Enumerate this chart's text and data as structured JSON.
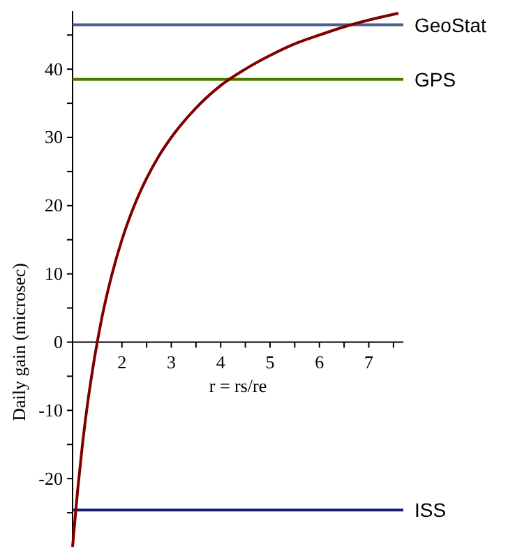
{
  "chart_data": {
    "type": "line",
    "xlabel": "r = rs/re",
    "ylabel": "Daily gain (microsec)",
    "x": [
      1.0,
      1.1,
      1.2,
      1.3,
      1.4,
      1.5,
      1.6,
      1.8,
      2.0,
      2.25,
      2.5,
      2.75,
      3.0,
      3.5,
      4.0,
      4.5,
      5.0,
      5.5,
      6.0,
      6.5,
      7.0,
      7.6
    ],
    "series": [
      {
        "color": "#800000",
        "values": [
          -30,
          -21.9,
          -15,
          -9.2,
          -4.3,
          0,
          3.8,
          10,
          15,
          20,
          24,
          27.3,
          30,
          34.3,
          37.6,
          40,
          42,
          43.7,
          45,
          46.2,
          47.2,
          48.2
        ]
      }
    ],
    "xlim": [
      1,
      7.7
    ],
    "ylim": [
      -30,
      48.5
    ],
    "xticks": [
      {
        "value": 1,
        "label": null
      },
      {
        "value": 1.5,
        "label": null
      },
      2,
      {
        "value": 2.5,
        "label": null
      },
      3,
      {
        "value": 3.5,
        "label": null
      },
      4,
      {
        "value": 4.5,
        "label": null
      },
      5,
      {
        "value": 5.5,
        "label": null
      },
      6,
      {
        "value": 6.5,
        "label": null
      },
      7,
      {
        "value": 7.5,
        "label": null
      }
    ],
    "yticks": [
      {
        "value": -25,
        "label": null
      },
      -20,
      {
        "value": -15,
        "label": null
      },
      -10,
      {
        "value": -5,
        "label": null
      },
      0,
      {
        "value": 5,
        "label": null
      },
      10,
      {
        "value": 15,
        "label": null
      },
      20,
      {
        "value": 25,
        "label": null
      },
      30,
      {
        "value": 35,
        "label": null
      },
      40,
      {
        "value": 45,
        "label": null
      }
    ],
    "ref_lines": [
      {
        "axis": "y",
        "value": 46.5,
        "label": "GeoStat",
        "color": "#4a5e8e"
      },
      {
        "axis": "y",
        "value": 38.5,
        "label": "GPS",
        "color": "#4b7c00"
      },
      {
        "axis": "y",
        "value": -24.6,
        "label": "ISS",
        "color": "#1a1a70"
      }
    ],
    "grid": false,
    "marker": "none",
    "line_style": "solid"
  }
}
